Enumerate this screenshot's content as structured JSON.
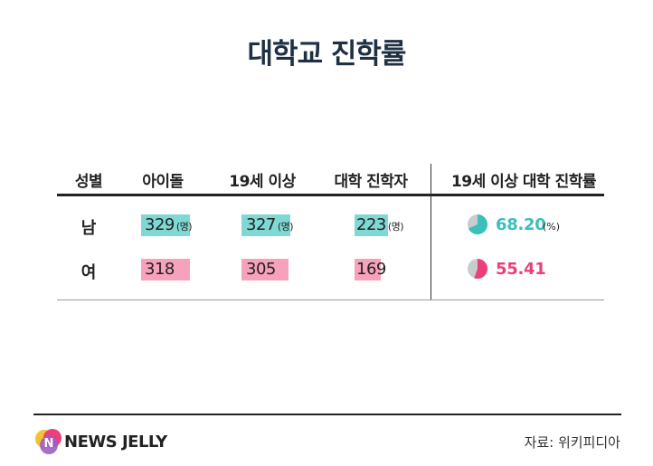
{
  "title": "대학교 진학률",
  "chart_data": {
    "type": "table",
    "title": "대학교 진학률",
    "columns": [
      "성별",
      "아이돌",
      "19세 이상",
      "대학 진학자",
      "19세 이상 대학 진학률"
    ],
    "rows": [
      {
        "gender": "남",
        "idols": 329,
        "adults": 327,
        "university": 223,
        "rate": 68.2,
        "rate_label": "68.20",
        "color": "#3bbfba"
      },
      {
        "gender": "여",
        "idols": 318,
        "adults": 305,
        "university": 169,
        "rate": 55.41,
        "rate_label": "55.41",
        "color": "#ea3f7b"
      }
    ],
    "count_unit": "(명)",
    "rate_unit": "(%)"
  },
  "footer": {
    "logo_letter": "N",
    "logo_text": "NEWS JELLY",
    "source": "자료: 위키피디아"
  },
  "colors": {
    "male": "#7fd8d4",
    "female": "#f7a2bc",
    "pie_bg": "#c9cccf"
  }
}
